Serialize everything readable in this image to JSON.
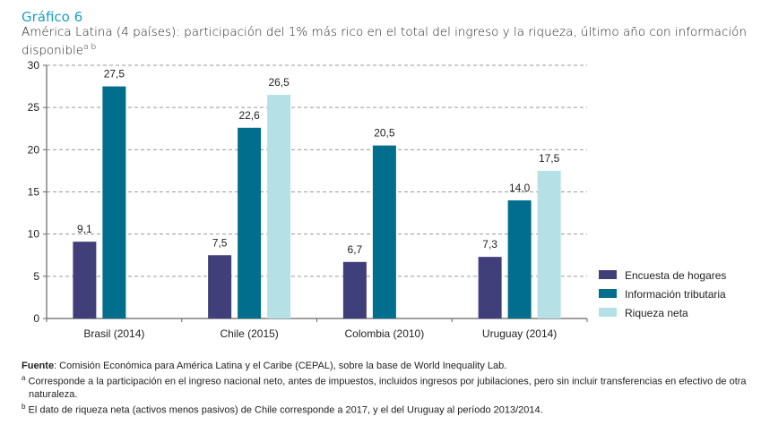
{
  "header": {
    "title": "Gráfico 6",
    "subtitle": "América Latina (4 países): participación del 1% más rico en el total del ingreso y la riqueza, último año con información disponible",
    "subtitle_sup": "a b"
  },
  "chart_data": {
    "type": "bar",
    "title": "América Latina (4 países): participación del 1% más rico en el total del ingreso y la riqueza, último año con información disponible",
    "xlabel": "",
    "ylabel": "",
    "ylim": [
      0,
      30
    ],
    "yticks": [
      0,
      5,
      10,
      15,
      20,
      25,
      30
    ],
    "grid": true,
    "legend_position": "bottom-right",
    "categories": [
      "Brasil (2014)",
      "Chile (2015)",
      "Colombia (2010)",
      "Uruguay (2014)"
    ],
    "series": [
      {
        "name": "Encuesta de hogares",
        "color": "#413f7a",
        "values": [
          9.1,
          7.5,
          6.7,
          7.3
        ],
        "labels": [
          "9,1",
          "7,5",
          "6,7",
          "7,3"
        ]
      },
      {
        "name": "Información tributaria",
        "color": "#006e8c",
        "values": [
          27.5,
          22.6,
          20.5,
          14.0
        ],
        "labels": [
          "27,5",
          "22,6",
          "20,5",
          "14,0"
        ]
      },
      {
        "name": "Riqueza neta",
        "color": "#b5e1e6",
        "values": [
          null,
          26.5,
          null,
          17.5
        ],
        "labels": [
          null,
          "26,5",
          null,
          "17,5"
        ]
      }
    ]
  },
  "footer": {
    "source_label": "Fuente",
    "source_text": ": Comisión Económica para América Latina y el Caribe (CEPAL), sobre la base de World Inequality Lab.",
    "note_a_mark": "a",
    "note_a": " Corresponde a la participación en el ingreso nacional neto, antes de impuestos, incluidos ingresos por jubilaciones, pero sin incluir transferencias en efectivo de otra naturaleza.",
    "note_b_mark": "b",
    "note_b": " El dato de riqueza neta (activos menos pasivos) de Chile corresponde a 2017, y el del Uruguay al período 2013/2014."
  }
}
